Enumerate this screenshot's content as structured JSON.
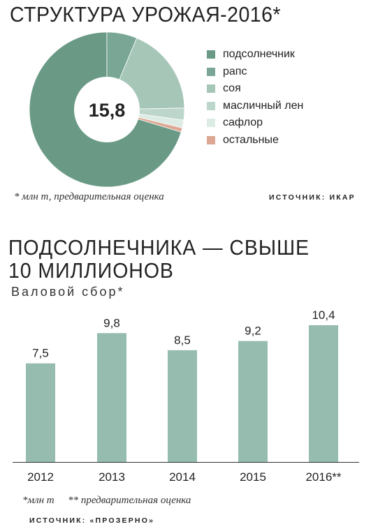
{
  "chart_data": [
    {
      "type": "pie",
      "title": "СТРУКТУРА УРОЖАЯ-2016*",
      "center_label": "15,8",
      "categories": [
        "подсолнечник",
        "рапс",
        "соя",
        "масличный лен",
        "сафлор",
        "остальные"
      ],
      "values": [
        70.3,
        6.3,
        18.4,
        2.5,
        1.6,
        0.9
      ],
      "colors": [
        "#6a9a86",
        "#7aa795",
        "#a6c6b8",
        "#bdd6cb",
        "#dcebe4",
        "#dca894"
      ],
      "legend_position": "right",
      "note": "* млн т, предварительная оценка",
      "source": "ИСТОЧНИК: ИКАР"
    },
    {
      "type": "bar",
      "title_line1": "ПОДСОЛНЕЧНИКА — СВЫШЕ",
      "title_line2": "10 МИЛЛИОНОВ",
      "subtitle": "Валовой сбор*",
      "categories": [
        "2012",
        "2013",
        "2014",
        "2015",
        "2016**"
      ],
      "values": [
        7.5,
        9.8,
        8.5,
        9.2,
        10.4
      ],
      "value_labels": [
        "7,5",
        "9,8",
        "8,5",
        "9,2",
        "10,4"
      ],
      "ylim": [
        0,
        10.4
      ],
      "grid": false,
      "bar_color": "#95bcae",
      "note_left": "*млн т",
      "note_right": "** предварительная оценка",
      "source": "ИСТОЧНИК: «ПРОЗЕРНО»"
    }
  ]
}
